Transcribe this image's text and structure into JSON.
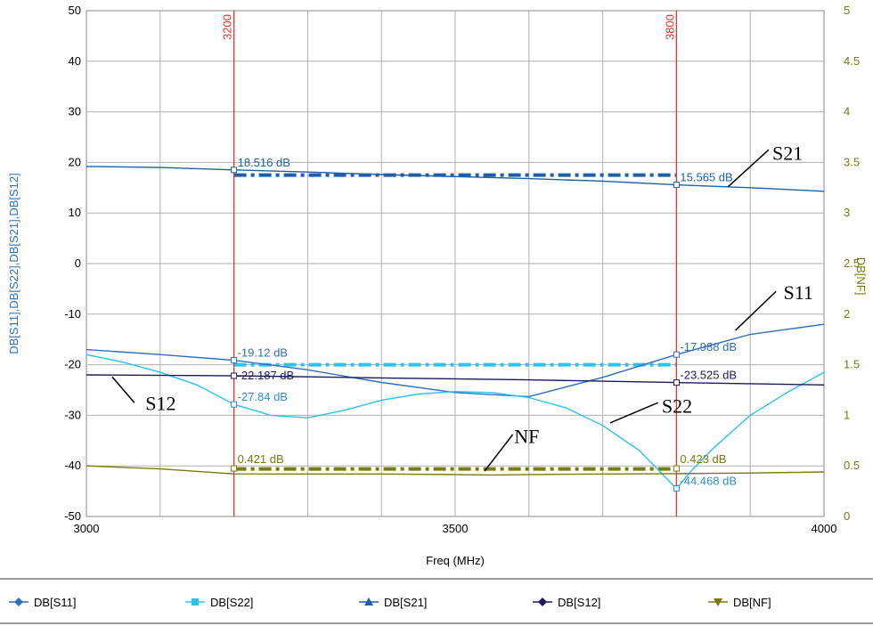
{
  "chart_data": {
    "type": "line",
    "xlabel": "Freq (MHz)",
    "ylabel_left": "DB[S11],DB[S22],DB[S21],DB[S12]",
    "ylabel_right": "DB[NF]",
    "xlim": [
      3000,
      4000
    ],
    "ylim_left": [
      -50,
      50
    ],
    "ylim_right": [
      0,
      5
    ],
    "x_ticks": [
      "3000",
      "3500",
      "4000"
    ],
    "y_left_ticks": [
      "50",
      "40",
      "30",
      "20",
      "10",
      "0",
      "-10",
      "-20",
      "-30",
      "-40",
      "-50"
    ],
    "y_right_ticks": [
      "5",
      "4.5",
      "4",
      "3.5",
      "3",
      "2.5",
      "2",
      "1.5",
      "1",
      "0.5",
      "0"
    ],
    "grid": true,
    "series": [
      {
        "name": "DB[S11]",
        "axis": "left",
        "color": "#2f6fbf",
        "marker": "diamond",
        "x": [
          3000,
          3100,
          3200,
          3300,
          3400,
          3500,
          3600,
          3700,
          3800,
          3900,
          4000
        ],
        "y": [
          -17,
          -18,
          -19.12,
          -21,
          -23.5,
          -25.5,
          -26.3,
          -22.5,
          -17.988,
          -14,
          -12
        ]
      },
      {
        "name": "DB[S22]",
        "axis": "left",
        "color": "#29c3ee",
        "marker": "square",
        "x": [
          3000,
          3050,
          3100,
          3150,
          3200,
          3250,
          3300,
          3350,
          3400,
          3450,
          3500,
          3550,
          3600,
          3650,
          3700,
          3750,
          3780,
          3800,
          3820,
          3850,
          3900,
          3950,
          4000
        ],
        "y": [
          -18,
          -19.5,
          -21.5,
          -24,
          -27.84,
          -30,
          -30.5,
          -29,
          -27,
          -25.8,
          -25.3,
          -25.5,
          -26.5,
          -28.5,
          -32,
          -37,
          -41.5,
          -44.468,
          -41,
          -36.5,
          -30,
          -25.5,
          -21.5
        ]
      },
      {
        "name": "DB[S21]",
        "axis": "left",
        "color": "#1f5fa8",
        "marker": "triangle",
        "x": [
          3000,
          3100,
          3200,
          3300,
          3400,
          3500,
          3600,
          3700,
          3800,
          3900,
          4000
        ],
        "y": [
          19.2,
          19,
          18.516,
          18.1,
          17.6,
          17.2,
          16.8,
          16.3,
          15.565,
          15,
          14.3
        ]
      },
      {
        "name": "DB[S12]",
        "axis": "left",
        "color": "#1b1b5e",
        "marker": "diamond",
        "x": [
          3000,
          3200,
          3400,
          3600,
          3800,
          4000
        ],
        "y": [
          -22,
          -22.187,
          -22.6,
          -23,
          -23.525,
          -24
        ]
      },
      {
        "name": "DB[NF]",
        "axis": "right",
        "color": "#7a7a10",
        "marker": "triangle-down",
        "x": [
          3000,
          3100,
          3200,
          3300,
          3400,
          3500,
          3550,
          3600,
          3700,
          3800,
          3900,
          4000
        ],
        "y": [
          0.5,
          0.47,
          0.421,
          0.42,
          0.42,
          0.415,
          0.41,
          0.415,
          0.42,
          0.423,
          0.43,
          0.44
        ]
      }
    ],
    "goals": [
      {
        "series": "DB[S21]",
        "x": [
          3200,
          3800
        ],
        "y": 17.5,
        "color": "#1f5fa8"
      },
      {
        "series": "DB[S11]",
        "x": [
          3200,
          3800
        ],
        "y": -20,
        "color": "#29c3ee"
      },
      {
        "series": "DB[NF]",
        "x": [
          3200,
          3800
        ],
        "y": 0.47,
        "color": "#7a7a10"
      }
    ],
    "markers": [
      {
        "x": 3200,
        "label": "3200"
      },
      {
        "x": 3800,
        "label": "3800"
      }
    ],
    "marker_readouts": [
      {
        "x": 3200,
        "y": 18.516,
        "text": "18.516 dB",
        "color": "#1f5fa8"
      },
      {
        "x": 3800,
        "y": 15.565,
        "text": "15.565 dB",
        "color": "#1f5fa8"
      },
      {
        "x": 3200,
        "y": -19.12,
        "text": "-19.12 dB",
        "color": "#2f6fbf"
      },
      {
        "x": 3200,
        "y": -22.187,
        "text": "-22.187 dB",
        "color": "#1b1b5e"
      },
      {
        "x": 3200,
        "y": -27.84,
        "text": "-27.84 dB",
        "color": "#2f8fc8"
      },
      {
        "x": 3800,
        "y": -17.988,
        "text": "-17.988 dB",
        "color": "#2f6fbf"
      },
      {
        "x": 3800,
        "y": -23.525,
        "text": "-23.525 dB",
        "color": "#1b1b5e"
      },
      {
        "x": 3800,
        "y": -44.468,
        "text": "-44.468 dB",
        "color": "#2f8fc8"
      },
      {
        "x": 3200,
        "y": -40.5,
        "text": "0.421 dB",
        "color": "#7a7a10"
      },
      {
        "x": 3800,
        "y": -40.5,
        "text": "0.423 dB",
        "color": "#7a7a10"
      }
    ],
    "annotations": [
      {
        "text": "S21",
        "x": 3930,
        "y": 20.5,
        "line": [
          [
            3870,
            15.2
          ],
          [
            3925,
            22.5
          ]
        ]
      },
      {
        "text": "S11",
        "x": 3945,
        "y": -7,
        "line": [
          [
            3880,
            -13.2
          ],
          [
            3935,
            -5.5
          ]
        ]
      },
      {
        "text": "S12",
        "x": 3080,
        "y": -29,
        "line": [
          [
            3035,
            -22.4
          ],
          [
            3065,
            -27.5
          ]
        ]
      },
      {
        "text": "S22",
        "x": 3780,
        "y": -29.5,
        "line": [
          [
            3710,
            -31.5
          ],
          [
            3775,
            -27.5
          ]
        ]
      },
      {
        "text": "NF",
        "x": 3580,
        "y": -35.5,
        "line": [
          [
            3540,
            -41
          ],
          [
            3578,
            -33.8
          ]
        ]
      }
    ]
  }
}
